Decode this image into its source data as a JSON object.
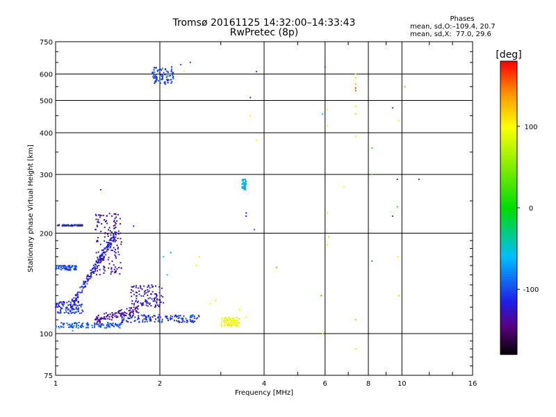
{
  "header": {
    "title": "Tromsø 20161125 14:32:00–14:33:43",
    "subtitle": "RwPretec (8p)"
  },
  "phase_box": {
    "title": "Phases",
    "line1": "mean, sd,O:–109.4, 20.7",
    "line2": "mean, sd,X:  77.0, 29.6"
  },
  "colorbar": {
    "label": "[deg]",
    "range": [
      -180,
      180
    ],
    "ticks": [
      "100",
      "0",
      "-100"
    ],
    "tick_values": [
      100,
      0,
      -100
    ]
  },
  "chart_data": {
    "type": "scatter",
    "xlabel": "Frequency [MHz]",
    "ylabel": "Stationary phase Virtual Height [km]",
    "xscale": "log",
    "yscale": "log",
    "xlim": [
      1,
      16
    ],
    "ylim": [
      75,
      750
    ],
    "xticks": [
      "1",
      "2",
      "4",
      "6",
      "8",
      "10",
      "16"
    ],
    "xtick_values": [
      1,
      2,
      4,
      6,
      8,
      10,
      16
    ],
    "yticks": [
      "75",
      "100",
      "200",
      "300",
      "400",
      "500",
      "600",
      "750"
    ],
    "ytick_values": [
      75,
      100,
      200,
      300,
      400,
      500,
      600,
      750
    ],
    "grid": true,
    "color_variable": "phase (deg)",
    "clusters": [
      {
        "desc": "low E trace",
        "x": [
          1.0,
          1.55
        ],
        "y": [
          104,
          108
        ],
        "phase": -95
      },
      {
        "desc": "flat blue F trace",
        "x": [
          1.55,
          2.6
        ],
        "y": [
          108,
          114
        ],
        "phase": -108
      },
      {
        "desc": "purple E-F rising",
        "x": [
          1.3,
          1.75
        ],
        "y": [
          110,
          118
        ],
        "phase": -135
      },
      {
        "desc": "blue band 115-125",
        "x": [
          1.0,
          1.2
        ],
        "y": [
          115,
          125
        ],
        "phase": -110
      },
      {
        "desc": "steep trace",
        "x": [
          1.1,
          1.5
        ],
        "y": [
          120,
          200
        ],
        "phase": -115
      },
      {
        "desc": "cloud",
        "x": [
          1.3,
          1.55
        ],
        "y": [
          150,
          230
        ],
        "phase": -130
      },
      {
        "desc": "210 km trace",
        "x": [
          1.0,
          1.2
        ],
        "y": [
          210,
          212
        ],
        "phase": -112
      },
      {
        "desc": "155 km trace",
        "x": [
          1.0,
          1.15
        ],
        "y": [
          155,
          160
        ],
        "phase": -100
      },
      {
        "desc": "mid cloud",
        "x": [
          1.65,
          2.05
        ],
        "y": [
          120,
          140
        ],
        "phase": -125
      },
      {
        "desc": "high 570-620",
        "x": [
          1.9,
          2.2
        ],
        "y": [
          560,
          630
        ],
        "phase": -105
      },
      {
        "desc": "mid 3.5MHz",
        "x": [
          3.45,
          3.55
        ],
        "y": [
          270,
          290
        ],
        "phase": -60
      },
      {
        "desc": "3 MHz yellow",
        "x": [
          3.0,
          3.4
        ],
        "y": [
          105,
          112
        ],
        "phase": 100
      }
    ],
    "points": [
      {
        "x": 1.35,
        "y": 270,
        "phase": -110
      },
      {
        "x": 1.68,
        "y": 210,
        "phase": -125
      },
      {
        "x": 2.3,
        "y": 640,
        "phase": -100
      },
      {
        "x": 2.45,
        "y": 650,
        "phase": -95
      },
      {
        "x": 3.8,
        "y": 610,
        "phase": -105
      },
      {
        "x": 3.65,
        "y": 510,
        "phase": -110
      },
      {
        "x": 3.65,
        "y": 450,
        "phase": 110
      },
      {
        "x": 3.8,
        "y": 380,
        "phase": 100
      },
      {
        "x": 3.55,
        "y": 230,
        "phase": -120
      },
      {
        "x": 3.55,
        "y": 225,
        "phase": -110
      },
      {
        "x": 3.75,
        "y": 205,
        "phase": -90
      },
      {
        "x": 4.35,
        "y": 158,
        "phase": 140
      },
      {
        "x": 5.9,
        "y": 455,
        "phase": -60
      },
      {
        "x": 6.0,
        "y": 630,
        "phase": -100
      },
      {
        "x": 6.1,
        "y": 470,
        "phase": 110
      },
      {
        "x": 6.1,
        "y": 420,
        "phase": 90
      },
      {
        "x": 6.8,
        "y": 275,
        "phase": 100
      },
      {
        "x": 6.1,
        "y": 230,
        "phase": 110
      },
      {
        "x": 6.15,
        "y": 195,
        "phase": 120
      },
      {
        "x": 6.1,
        "y": 185,
        "phase": 100
      },
      {
        "x": 5.85,
        "y": 130,
        "phase": 150
      },
      {
        "x": 5.9,
        "y": 100,
        "phase": 120
      },
      {
        "x": 7.35,
        "y": 600,
        "phase": 110
      },
      {
        "x": 7.35,
        "y": 585,
        "phase": 120
      },
      {
        "x": 7.35,
        "y": 560,
        "phase": 130
      },
      {
        "x": 7.35,
        "y": 545,
        "phase": 170
      },
      {
        "x": 7.35,
        "y": 535,
        "phase": 160
      },
      {
        "x": 7.35,
        "y": 480,
        "phase": 110
      },
      {
        "x": 7.35,
        "y": 455,
        "phase": 120
      },
      {
        "x": 7.35,
        "y": 390,
        "phase": 110
      },
      {
        "x": 7.35,
        "y": 110,
        "phase": 130
      },
      {
        "x": 7.35,
        "y": 90,
        "phase": 110
      },
      {
        "x": 8.2,
        "y": 360,
        "phase": 20
      },
      {
        "x": 8.2,
        "y": 300,
        "phase": 40
      },
      {
        "x": 8.2,
        "y": 165,
        "phase": -80
      },
      {
        "x": 9.4,
        "y": 475,
        "phase": -100
      },
      {
        "x": 9.4,
        "y": 225,
        "phase": -100
      },
      {
        "x": 9.7,
        "y": 290,
        "phase": -110
      },
      {
        "x": 9.7,
        "y": 240,
        "phase": 20
      },
      {
        "x": 9.8,
        "y": 435,
        "phase": 100
      },
      {
        "x": 9.75,
        "y": 170,
        "phase": 110
      },
      {
        "x": 9.8,
        "y": 130,
        "phase": 120
      },
      {
        "x": 10.2,
        "y": 550,
        "phase": 40
      },
      {
        "x": 11.2,
        "y": 290,
        "phase": -110
      },
      {
        "x": 2.6,
        "y": 170,
        "phase": 110
      },
      {
        "x": 2.55,
        "y": 160,
        "phase": 100
      },
      {
        "x": 2.35,
        "y": 610,
        "phase": 100
      },
      {
        "x": 2.8,
        "y": 123,
        "phase": 100
      },
      {
        "x": 2.9,
        "y": 126,
        "phase": 90
      },
      {
        "x": 3.4,
        "y": 118,
        "phase": 90
      },
      {
        "x": 3.55,
        "y": 112,
        "phase": 100
      },
      {
        "x": 1.12,
        "y": 102,
        "phase": -70
      },
      {
        "x": 2.05,
        "y": 170,
        "phase": -60
      },
      {
        "x": 2.1,
        "y": 150,
        "phase": -55
      },
      {
        "x": 2.15,
        "y": 175,
        "phase": -70
      }
    ]
  }
}
